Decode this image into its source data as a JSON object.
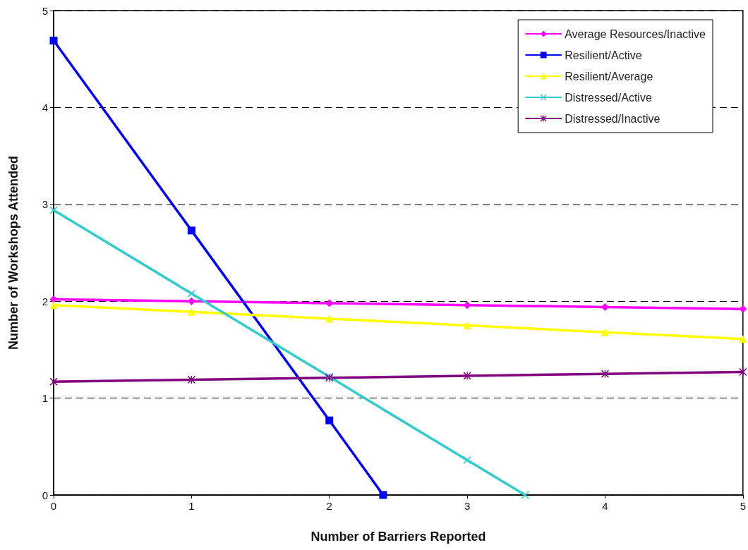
{
  "chart_data": {
    "type": "line",
    "xlabel": "Number of Barriers Reported",
    "ylabel": "Number of Workshops Attended",
    "xlim": [
      0,
      5
    ],
    "xticks": [
      0,
      1,
      2,
      3,
      4,
      5
    ],
    "ylim": [
      0,
      5
    ],
    "yticks": [
      0,
      1,
      2,
      3,
      4,
      5
    ],
    "grid": "y",
    "legend": "top right",
    "line_style": "solid",
    "series": [
      {
        "name": "Average Resources/Inactive",
        "color": "#ff00ff",
        "marker": "diamond",
        "x": [
          0,
          1,
          2,
          3,
          4,
          5
        ],
        "values": [
          2.02,
          2.0,
          1.98,
          1.96,
          1.94,
          1.92
        ]
      },
      {
        "name": "Resilient/Active",
        "color": "#0000ff",
        "marker": "square",
        "x": [
          0,
          1,
          2,
          2.39
        ],
        "values": [
          4.69,
          2.73,
          0.77,
          0
        ]
      },
      {
        "name": "Resilient/Average",
        "color": "#ffff00",
        "marker": "triangle",
        "x": [
          0,
          1,
          2,
          3,
          4,
          5
        ],
        "values": [
          1.96,
          1.89,
          1.82,
          1.75,
          1.68,
          1.61
        ]
      },
      {
        "name": "Distressed/Active",
        "color": "#33cccc",
        "marker": "cross",
        "x": [
          0,
          1,
          2,
          3,
          3.42
        ],
        "values": [
          2.94,
          2.08,
          1.22,
          0.36,
          0
        ]
      },
      {
        "name": "Distressed/Inactive",
        "color": "#800080",
        "marker": "star",
        "x": [
          0,
          1,
          2,
          3,
          4,
          5
        ],
        "values": [
          1.17,
          1.19,
          1.21,
          1.23,
          1.25,
          1.27
        ]
      }
    ]
  }
}
